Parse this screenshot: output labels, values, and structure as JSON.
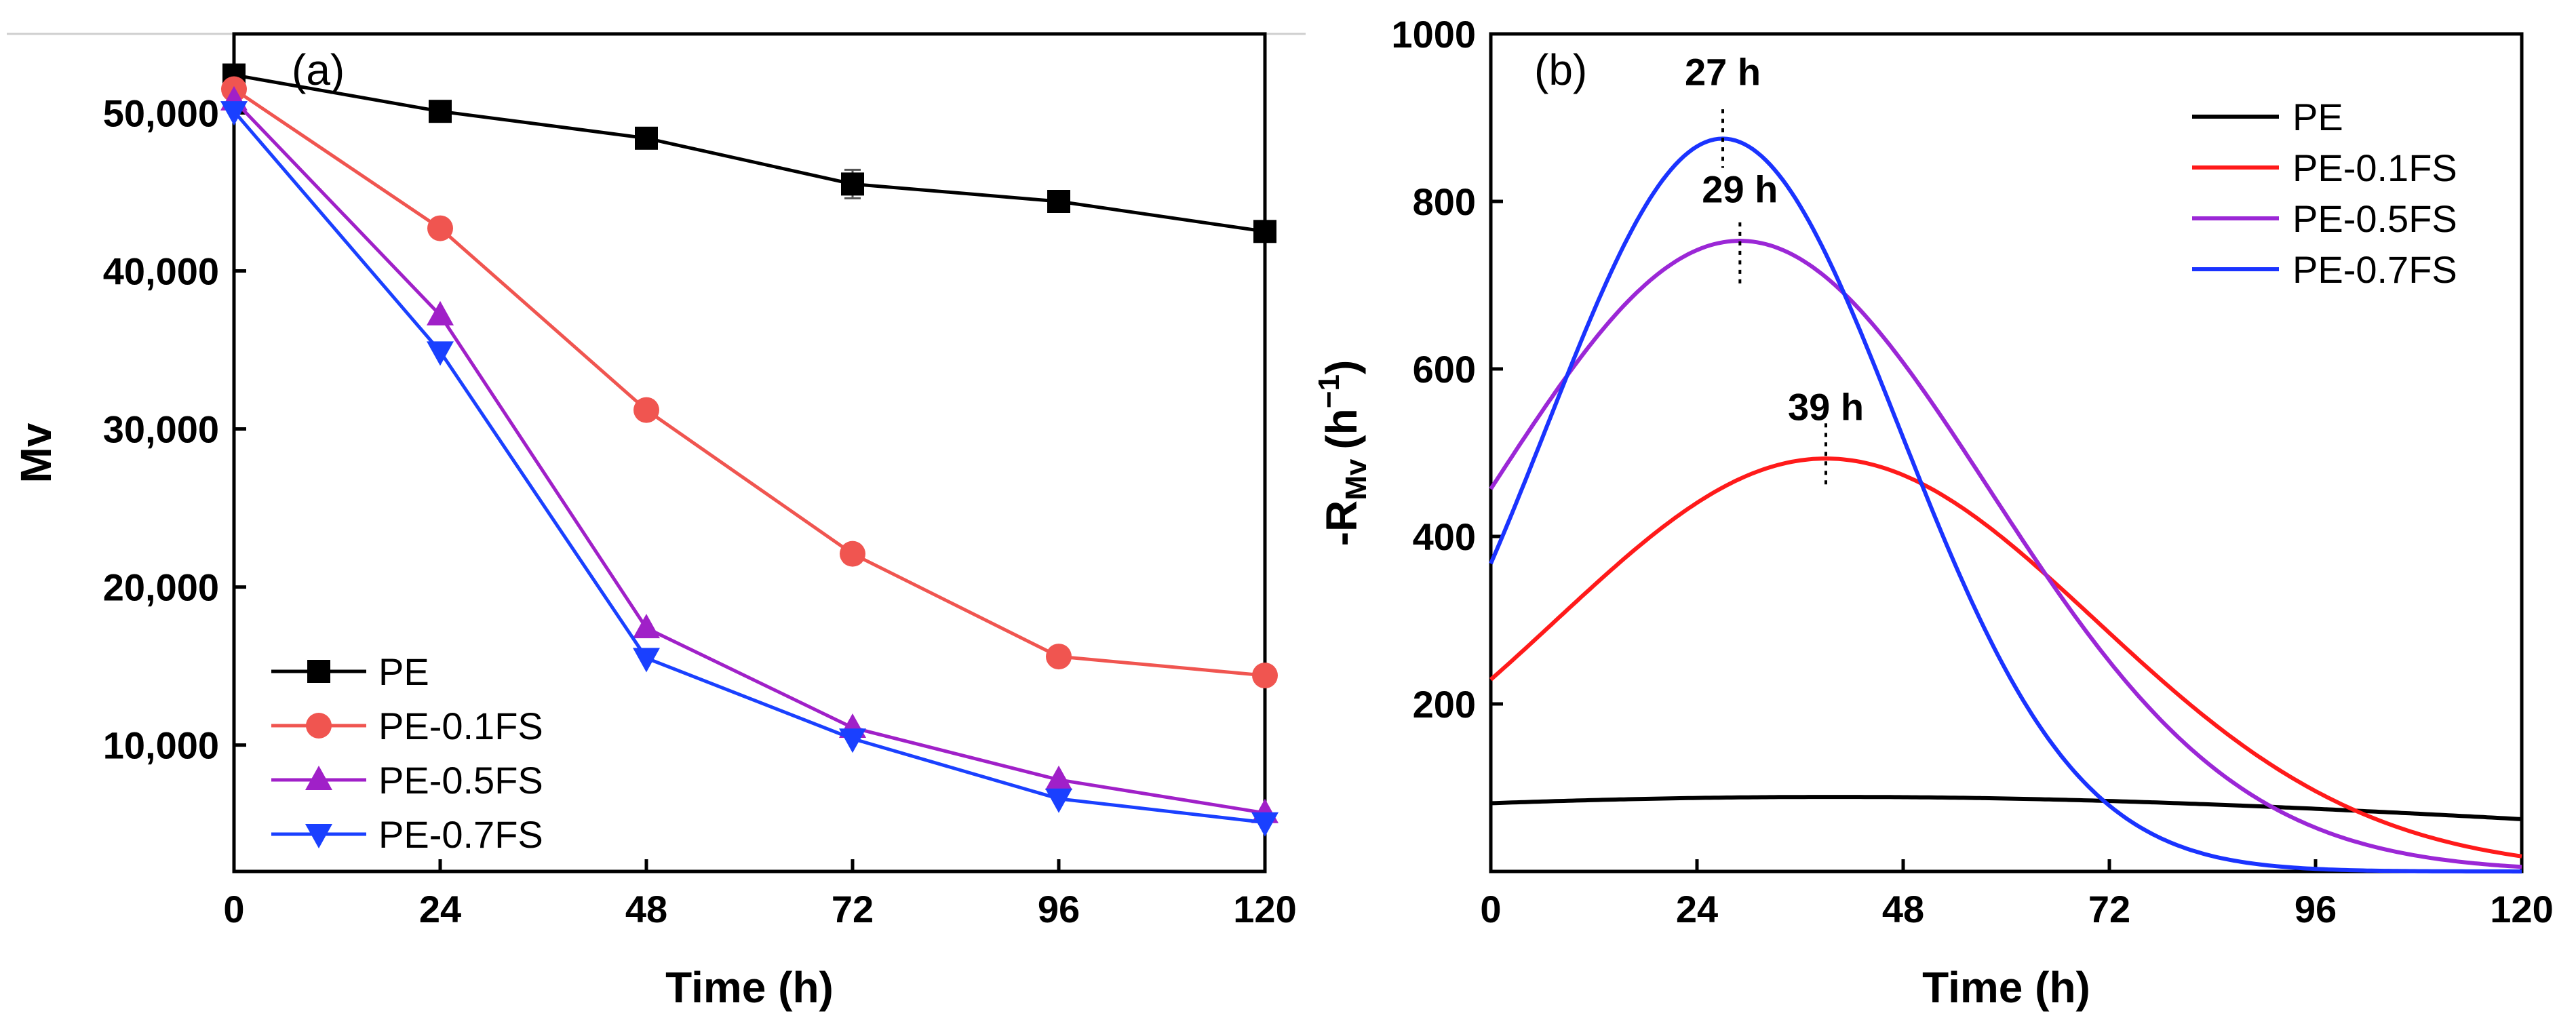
{
  "chart_data": [
    {
      "panel_label": "(a)",
      "type": "line",
      "xlabel": "Time (h)",
      "ylabel": "Mv",
      "xlim": [
        0,
        120
      ],
      "ylim": [
        2000,
        55000
      ],
      "xticks": [
        0,
        24,
        48,
        72,
        96,
        120
      ],
      "xtick_labels": [
        "0",
        "24",
        "48",
        "72",
        "96",
        "120"
      ],
      "yticks": [
        10000,
        20000,
        30000,
        40000,
        50000
      ],
      "ytick_labels": [
        "10,000",
        "20,000",
        "30,000",
        "40,000",
        "50,000"
      ],
      "legend_position": "bottom-left",
      "x": [
        0,
        24,
        48,
        72,
        96,
        120
      ],
      "series": [
        {
          "name": "PE",
          "color": "#000000",
          "marker": "square",
          "values": [
            52400,
            50100,
            48400,
            45500,
            44400,
            42500
          ],
          "errors": [
            300,
            250,
            300,
            900,
            300,
            400
          ]
        },
        {
          "name": "PE-0.1FS",
          "color": "#f05550",
          "marker": "circle",
          "values": [
            51500,
            42700,
            31200,
            22100,
            15600,
            14400
          ]
        },
        {
          "name": "PE-0.5FS",
          "color": "#a020c8",
          "marker": "triangle-up",
          "values": [
            50800,
            37200,
            17400,
            11100,
            7800,
            5700
          ]
        },
        {
          "name": "PE-0.7FS",
          "color": "#1a40ff",
          "marker": "triangle-down",
          "values": [
            50100,
            34900,
            15500,
            10400,
            6600,
            5100
          ]
        }
      ]
    },
    {
      "panel_label": "(b)",
      "type": "line",
      "xlabel": "Time (h)",
      "ylabel_main": "-R",
      "ylabel_sub": "Mv",
      "ylabel_unit": "(h",
      "ylabel_exp": "−1",
      "ylabel_close": ")",
      "xlim": [
        0,
        120
      ],
      "ylim": [
        0,
        1000
      ],
      "xticks": [
        0,
        24,
        48,
        72,
        96,
        120
      ],
      "xtick_labels": [
        "0",
        "24",
        "48",
        "72",
        "96",
        "120"
      ],
      "yticks": [
        200,
        400,
        600,
        800,
        1000
      ],
      "ytick_labels": [
        "200",
        "400",
        "600",
        "800",
        "1000"
      ],
      "legend_position": "top-right",
      "series": [
        {
          "name": "PE",
          "color": "#000000",
          "peak_x": 40,
          "peak_y": 89,
          "sigma": 95
        },
        {
          "name": "PE-0.1FS",
          "color": "#ff1a1a",
          "peak_x": 39,
          "peak_y": 493,
          "sigma": 31.5
        },
        {
          "name": "PE-0.5FS",
          "color": "#9b27d6",
          "peak_x": 29,
          "peak_y": 753,
          "sigma": 29
        },
        {
          "name": "PE-0.7FS",
          "color": "#1a33ff",
          "peak_x": 27,
          "peak_y": 875,
          "sigma": 20.5
        }
      ],
      "annotations": [
        {
          "text": "27 h",
          "x": 27,
          "label_y": 955,
          "line_top": 910,
          "line_bottom": 840
        },
        {
          "text": "29 h",
          "x": 29,
          "label_y": 815,
          "line_top": 775,
          "line_bottom": 700
        },
        {
          "text": "39 h",
          "x": 39,
          "label_y": 555,
          "line_top": 535,
          "line_bottom": 460
        }
      ]
    }
  ]
}
